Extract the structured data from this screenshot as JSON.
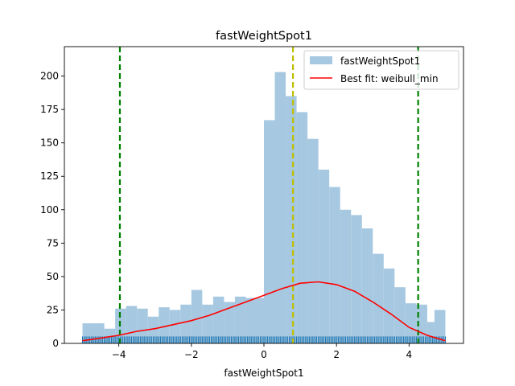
{
  "chart_data": {
    "type": "bar",
    "title": "fastWeightSpot1",
    "xlabel": "fastWeightSpot1",
    "ylabel": "",
    "xlim": [
      -5.5,
      5.5
    ],
    "ylim": [
      0,
      222
    ],
    "x_ticks": [
      -4,
      -2,
      0,
      2,
      4
    ],
    "y_ticks": [
      0,
      25,
      50,
      75,
      100,
      125,
      150,
      175,
      200
    ],
    "bin_edges": [
      -5.0,
      -4.7,
      -4.4,
      -4.1,
      -3.8,
      -3.5,
      -3.2,
      -2.9,
      -2.6,
      -2.3,
      -2.0,
      -1.7,
      -1.4,
      -1.1,
      -0.8,
      -0.5,
      -0.2,
      0.0,
      0.3,
      0.6,
      0.9,
      1.2,
      1.5,
      1.8,
      2.1,
      2.4,
      2.7,
      3.0,
      3.3,
      3.6,
      3.9,
      4.2,
      4.5,
      4.7,
      5.0
    ],
    "bin_counts": [
      15,
      15,
      11,
      26,
      28,
      26,
      20,
      27,
      25,
      29,
      40,
      29,
      35,
      31,
      35,
      34,
      34,
      167,
      203,
      185,
      173,
      153,
      130,
      117,
      100,
      96,
      86,
      67,
      56,
      42,
      30,
      29,
      16,
      25
    ],
    "series": [
      {
        "name": "fastWeightSpot1",
        "kind": "histogram",
        "color": "#a6c8e0"
      },
      {
        "name": "Best fit: weibull_min",
        "kind": "line",
        "color": "#ff0000",
        "x": [
          -5.0,
          -4.5,
          -4.0,
          -3.5,
          -3.0,
          -2.5,
          -2.0,
          -1.5,
          -1.0,
          -0.5,
          0.0,
          0.5,
          1.0,
          1.5,
          2.0,
          2.5,
          3.0,
          3.5,
          4.0,
          4.5,
          5.0
        ],
        "y": [
          2,
          4,
          6,
          9,
          11,
          14,
          17,
          21,
          26,
          31,
          36,
          41,
          45,
          46,
          44,
          39,
          31,
          22,
          12,
          6,
          2
        ]
      }
    ],
    "vertical_lines": [
      {
        "x": -3.97,
        "color": "#008000",
        "style": "dashed"
      },
      {
        "x": 0.8,
        "color": "#bfbf00",
        "style": "dashed"
      },
      {
        "x": 4.25,
        "color": "#008000",
        "style": "dashed"
      }
    ],
    "rug": {
      "color": "#1f77b4",
      "x_range": [
        -5.0,
        5.0
      ]
    },
    "legend_position": "top-right",
    "grid": false
  }
}
